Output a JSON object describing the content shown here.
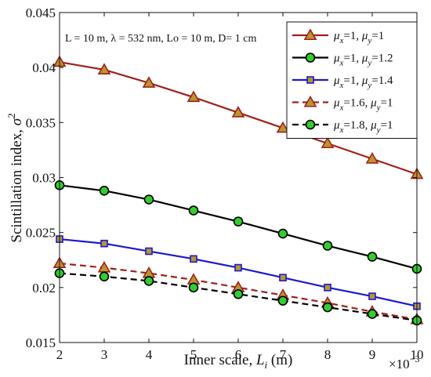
{
  "chart_data": {
    "type": "line",
    "x": [
      2,
      3,
      4,
      5,
      6,
      7,
      8,
      9,
      10
    ],
    "x_tick_labels": [
      "2",
      "3",
      "4",
      "5",
      "6",
      "7",
      "8",
      "9",
      "10"
    ],
    "x_multiplier": "×10",
    "x_multiplier_exp": "−3",
    "xlim": [
      2,
      10
    ],
    "ylim": [
      0.015,
      0.045
    ],
    "y_tick_values": [
      0.015,
      0.02,
      0.025,
      0.03,
      0.035,
      0.04,
      0.045
    ],
    "y_tick_labels": [
      "0.015",
      "0.02",
      "0.025",
      "0.03",
      "0.035",
      "0.04",
      "0.045"
    ],
    "xlabel": {
      "text": "Inner scale, ",
      "italic": "L",
      "sub": "i",
      "unit": " (m)"
    },
    "ylabel": {
      "text": "Scintillation index, ",
      "italic": "σ",
      "sup": "2"
    },
    "annotation": "L = 10 m, λ = 532 nm, Lo = 10 m, D= 1 cm",
    "grid": false,
    "legend_position": "top-right",
    "series": [
      {
        "name": "μx=1,  μy=1",
        "legend": {
          "a": "1",
          "b": "1"
        },
        "values": [
          0.0405,
          0.0398,
          0.0386,
          0.0373,
          0.0359,
          0.0345,
          0.0331,
          0.0317,
          0.0303
        ],
        "color": "#a0201c",
        "marker": "triangle",
        "marker_fill": "#b8962e",
        "dashed": false
      },
      {
        "name": "μx=1,  μy=1.2",
        "legend": {
          "a": "1",
          "b": "1.2"
        },
        "values": [
          0.0293,
          0.0288,
          0.028,
          0.027,
          0.026,
          0.0249,
          0.0238,
          0.0228,
          0.0217
        ],
        "color": "#000000",
        "marker": "circle",
        "marker_fill": "#33cc33",
        "dashed": false
      },
      {
        "name": "μx=1,  μy=1.4",
        "legend": {
          "a": "1",
          "b": "1.4"
        },
        "values": [
          0.0244,
          0.024,
          0.0233,
          0.0226,
          0.0218,
          0.0209,
          0.02,
          0.0192,
          0.0183
        ],
        "color": "#1a1acc",
        "marker": "square",
        "marker_fill": "#b8962e",
        "dashed": false
      },
      {
        "name": "μx=1.6,  μy=1",
        "legend": {
          "a": "1.6",
          "b": "1"
        },
        "values": [
          0.0222,
          0.0218,
          0.0213,
          0.0207,
          0.02,
          0.0193,
          0.0186,
          0.0178,
          0.0171
        ],
        "color": "#a0201c",
        "marker": "triangle",
        "marker_fill": "#b8962e",
        "dashed": true
      },
      {
        "name": "μx=1.8,  μy=1",
        "legend": {
          "a": "1.8",
          "b": "1"
        },
        "values": [
          0.0213,
          0.021,
          0.0206,
          0.02,
          0.0194,
          0.0188,
          0.0182,
          0.0176,
          0.017
        ],
        "color": "#000000",
        "marker": "circle",
        "marker_fill": "#33cc33",
        "dashed": true
      }
    ]
  }
}
